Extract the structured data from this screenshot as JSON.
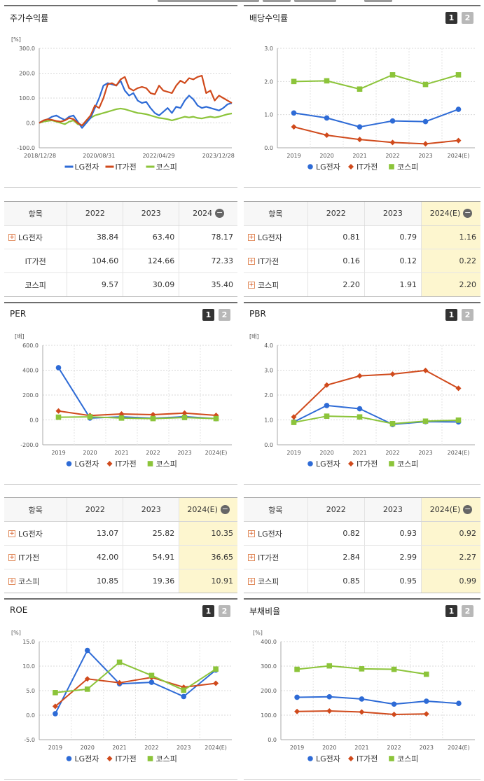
{
  "panels": {
    "p1": {
      "title": "주가수익률"
    },
    "p2": {
      "title": "배당수익률",
      "btn1": "1",
      "btn2": "2"
    },
    "p3": {
      "title": "PER",
      "btn1": "1",
      "btn2": "2"
    },
    "p4": {
      "title": "PBR",
      "btn1": "1",
      "btn2": "2"
    },
    "p5": {
      "title": "ROE",
      "btn1": "1",
      "btn2": "2"
    },
    "p6": {
      "title": "부채비율",
      "btn1": "1",
      "btn2": "2"
    }
  },
  "colors": {
    "lg": "#2e6bd6",
    "it": "#d04a1c",
    "kospi": "#8cc43a"
  },
  "legend": {
    "lg": "LG전자",
    "it": "IT가전",
    "kospi": "코스피"
  },
  "tables": {
    "t1": {
      "headers": [
        "항목",
        "2022",
        "2023",
        "2024"
      ],
      "highlight": false,
      "rows": [
        {
          "name": "LG전자",
          "plus": true,
          "v": [
            "38.84",
            "63.40",
            "78.17"
          ]
        },
        {
          "name": "IT가전",
          "plus": false,
          "v": [
            "104.60",
            "124.66",
            "72.33"
          ]
        },
        {
          "name": "코스피",
          "plus": false,
          "v": [
            "9.57",
            "30.09",
            "35.40"
          ]
        }
      ]
    },
    "t2": {
      "headers": [
        "항목",
        "2022",
        "2023",
        "2024(E)"
      ],
      "highlight": true,
      "rows": [
        {
          "name": "LG전자",
          "plus": true,
          "v": [
            "0.81",
            "0.79",
            "1.16"
          ]
        },
        {
          "name": "IT가전",
          "plus": true,
          "v": [
            "0.16",
            "0.12",
            "0.22"
          ]
        },
        {
          "name": "코스피",
          "plus": true,
          "v": [
            "2.20",
            "1.91",
            "2.20"
          ]
        }
      ]
    },
    "t3": {
      "headers": [
        "항목",
        "2022",
        "2023",
        "2024(E)"
      ],
      "highlight": true,
      "rows": [
        {
          "name": "LG전자",
          "plus": true,
          "v": [
            "13.07",
            "25.82",
            "10.35"
          ]
        },
        {
          "name": "IT가전",
          "plus": true,
          "v": [
            "42.00",
            "54.91",
            "36.65"
          ]
        },
        {
          "name": "코스피",
          "plus": true,
          "v": [
            "10.85",
            "19.36",
            "10.91"
          ]
        }
      ]
    },
    "t4": {
      "headers": [
        "항목",
        "2022",
        "2023",
        "2024(E)"
      ],
      "highlight": true,
      "rows": [
        {
          "name": "LG전자",
          "plus": true,
          "v": [
            "0.82",
            "0.93",
            "0.92"
          ]
        },
        {
          "name": "IT가전",
          "plus": true,
          "v": [
            "2.84",
            "2.99",
            "2.27"
          ]
        },
        {
          "name": "코스피",
          "plus": true,
          "v": [
            "0.85",
            "0.95",
            "0.99"
          ]
        }
      ]
    }
  },
  "chart_data": [
    {
      "id": "stock",
      "type": "line",
      "unit": "[%]",
      "yticks": [
        "300.0",
        "200.0",
        "100.0",
        "0.0",
        "-100.0"
      ],
      "ylim": [
        -100,
        300
      ],
      "xticks": [
        "2018/12/28",
        "2020/08/31",
        "2022/04/29",
        "2023/12/28"
      ],
      "series": [
        {
          "name": "LG전자",
          "key": "lg",
          "values": [
            0,
            10,
            15,
            25,
            30,
            20,
            12,
            25,
            30,
            5,
            -20,
            0,
            20,
            60,
            100,
            150,
            160,
            155,
            150,
            170,
            130,
            110,
            120,
            90,
            80,
            85,
            60,
            40,
            30,
            45,
            60,
            40,
            65,
            60,
            90,
            110,
            95,
            70,
            60,
            65,
            60,
            55,
            50,
            60,
            75,
            80
          ]
        },
        {
          "name": "IT가전",
          "key": "it",
          "values": [
            0,
            10,
            15,
            12,
            8,
            5,
            10,
            20,
            15,
            0,
            -10,
            10,
            30,
            70,
            60,
            100,
            155,
            160,
            150,
            175,
            185,
            140,
            130,
            140,
            145,
            140,
            120,
            115,
            150,
            130,
            125,
            120,
            150,
            170,
            160,
            180,
            175,
            185,
            190,
            120,
            130,
            90,
            110,
            100,
            90,
            80
          ]
        },
        {
          "name": "코스피",
          "key": "kospi",
          "values": [
            0,
            5,
            8,
            10,
            5,
            0,
            -5,
            5,
            10,
            -5,
            -10,
            5,
            20,
            30,
            35,
            40,
            45,
            50,
            55,
            58,
            55,
            50,
            45,
            40,
            38,
            35,
            30,
            25,
            20,
            18,
            15,
            10,
            15,
            20,
            25,
            22,
            25,
            20,
            18,
            22,
            25,
            22,
            25,
            30,
            35,
            38
          ]
        }
      ]
    },
    {
      "id": "dividend",
      "type": "line",
      "unit": "",
      "yticks": [
        "3.0",
        "2.0",
        "1.0",
        "0.0"
      ],
      "ylim": [
        0,
        3
      ],
      "categories": [
        "2019",
        "2020",
        "2021",
        "2022",
        "2023",
        "2024(E)"
      ],
      "series": [
        {
          "name": "LG전자",
          "key": "lg",
          "values": [
            1.05,
            0.9,
            0.63,
            0.81,
            0.79,
            1.16
          ]
        },
        {
          "name": "IT가전",
          "key": "it",
          "values": [
            0.63,
            0.38,
            0.25,
            0.16,
            0.12,
            0.22
          ]
        },
        {
          "name": "코스피",
          "key": "kospi",
          "values": [
            2.0,
            2.02,
            1.77,
            2.2,
            1.91,
            2.2
          ]
        }
      ]
    },
    {
      "id": "per",
      "type": "line",
      "unit": "[배]",
      "yticks": [
        "600.0",
        "400.0",
        "200.0",
        "0.0",
        "-200.0"
      ],
      "ylim": [
        -200,
        600
      ],
      "categories": [
        "2019",
        "2020",
        "2021",
        "2022",
        "2023",
        "2024(E)"
      ],
      "series": [
        {
          "name": "LG전자",
          "key": "lg",
          "values": [
            420,
            15,
            25,
            13.07,
            25.82,
            10.35
          ]
        },
        {
          "name": "IT가전",
          "key": "it",
          "values": [
            72,
            35,
            48,
            42,
            54.91,
            36.65
          ]
        },
        {
          "name": "코스피",
          "key": "kospi",
          "values": [
            22,
            25,
            15,
            10.85,
            19.36,
            10.91
          ]
        }
      ]
    },
    {
      "id": "pbr",
      "type": "line",
      "unit": "[배]",
      "yticks": [
        "4.0",
        "3.0",
        "2.0",
        "1.0",
        "0.0"
      ],
      "ylim": [
        0,
        4
      ],
      "categories": [
        "2019",
        "2020",
        "2021",
        "2022",
        "2023",
        "2024(E)"
      ],
      "series": [
        {
          "name": "LG전자",
          "key": "lg",
          "values": [
            0.92,
            1.58,
            1.45,
            0.82,
            0.93,
            0.92
          ]
        },
        {
          "name": "IT가전",
          "key": "it",
          "values": [
            1.12,
            2.4,
            2.77,
            2.84,
            2.99,
            2.27
          ]
        },
        {
          "name": "코스피",
          "key": "kospi",
          "values": [
            0.9,
            1.15,
            1.12,
            0.85,
            0.95,
            0.99
          ]
        }
      ]
    },
    {
      "id": "roe",
      "type": "line",
      "unit": "[%]",
      "yticks": [
        "15.0",
        "10.0",
        "5.0",
        "0.0",
        "-5.0"
      ],
      "ylim": [
        -5,
        15
      ],
      "categories": [
        "2019",
        "2020",
        "2021",
        "2022",
        "2023",
        "2024(E)"
      ],
      "series": [
        {
          "name": "LG전자",
          "key": "lg",
          "values": [
            0.3,
            13.2,
            6.4,
            6.7,
            3.8,
            9.2
          ]
        },
        {
          "name": "IT가전",
          "key": "it",
          "values": [
            1.8,
            7.4,
            6.6,
            7.7,
            5.7,
            6.5
          ]
        },
        {
          "name": "코스피",
          "key": "kospi",
          "values": [
            4.6,
            5.3,
            10.8,
            8.1,
            5.1,
            9.4
          ]
        }
      ]
    },
    {
      "id": "debt",
      "type": "line",
      "unit": "[%]",
      "yticks": [
        "400.0",
        "300.0",
        "200.0",
        "100.0",
        "0.0"
      ],
      "ylim": [
        0,
        400
      ],
      "categories": [
        "2019",
        "2020",
        "2021",
        "2022",
        "2023",
        "2024(E)"
      ],
      "series": [
        {
          "name": "LG전자",
          "key": "lg",
          "values": [
            173,
            175,
            166,
            145,
            157,
            148
          ]
        },
        {
          "name": "IT가전",
          "key": "it",
          "values": [
            115,
            117,
            113,
            103,
            105,
            null
          ]
        },
        {
          "name": "코스피",
          "key": "kospi",
          "values": [
            287,
            301,
            289,
            287,
            267,
            null
          ]
        }
      ]
    }
  ]
}
